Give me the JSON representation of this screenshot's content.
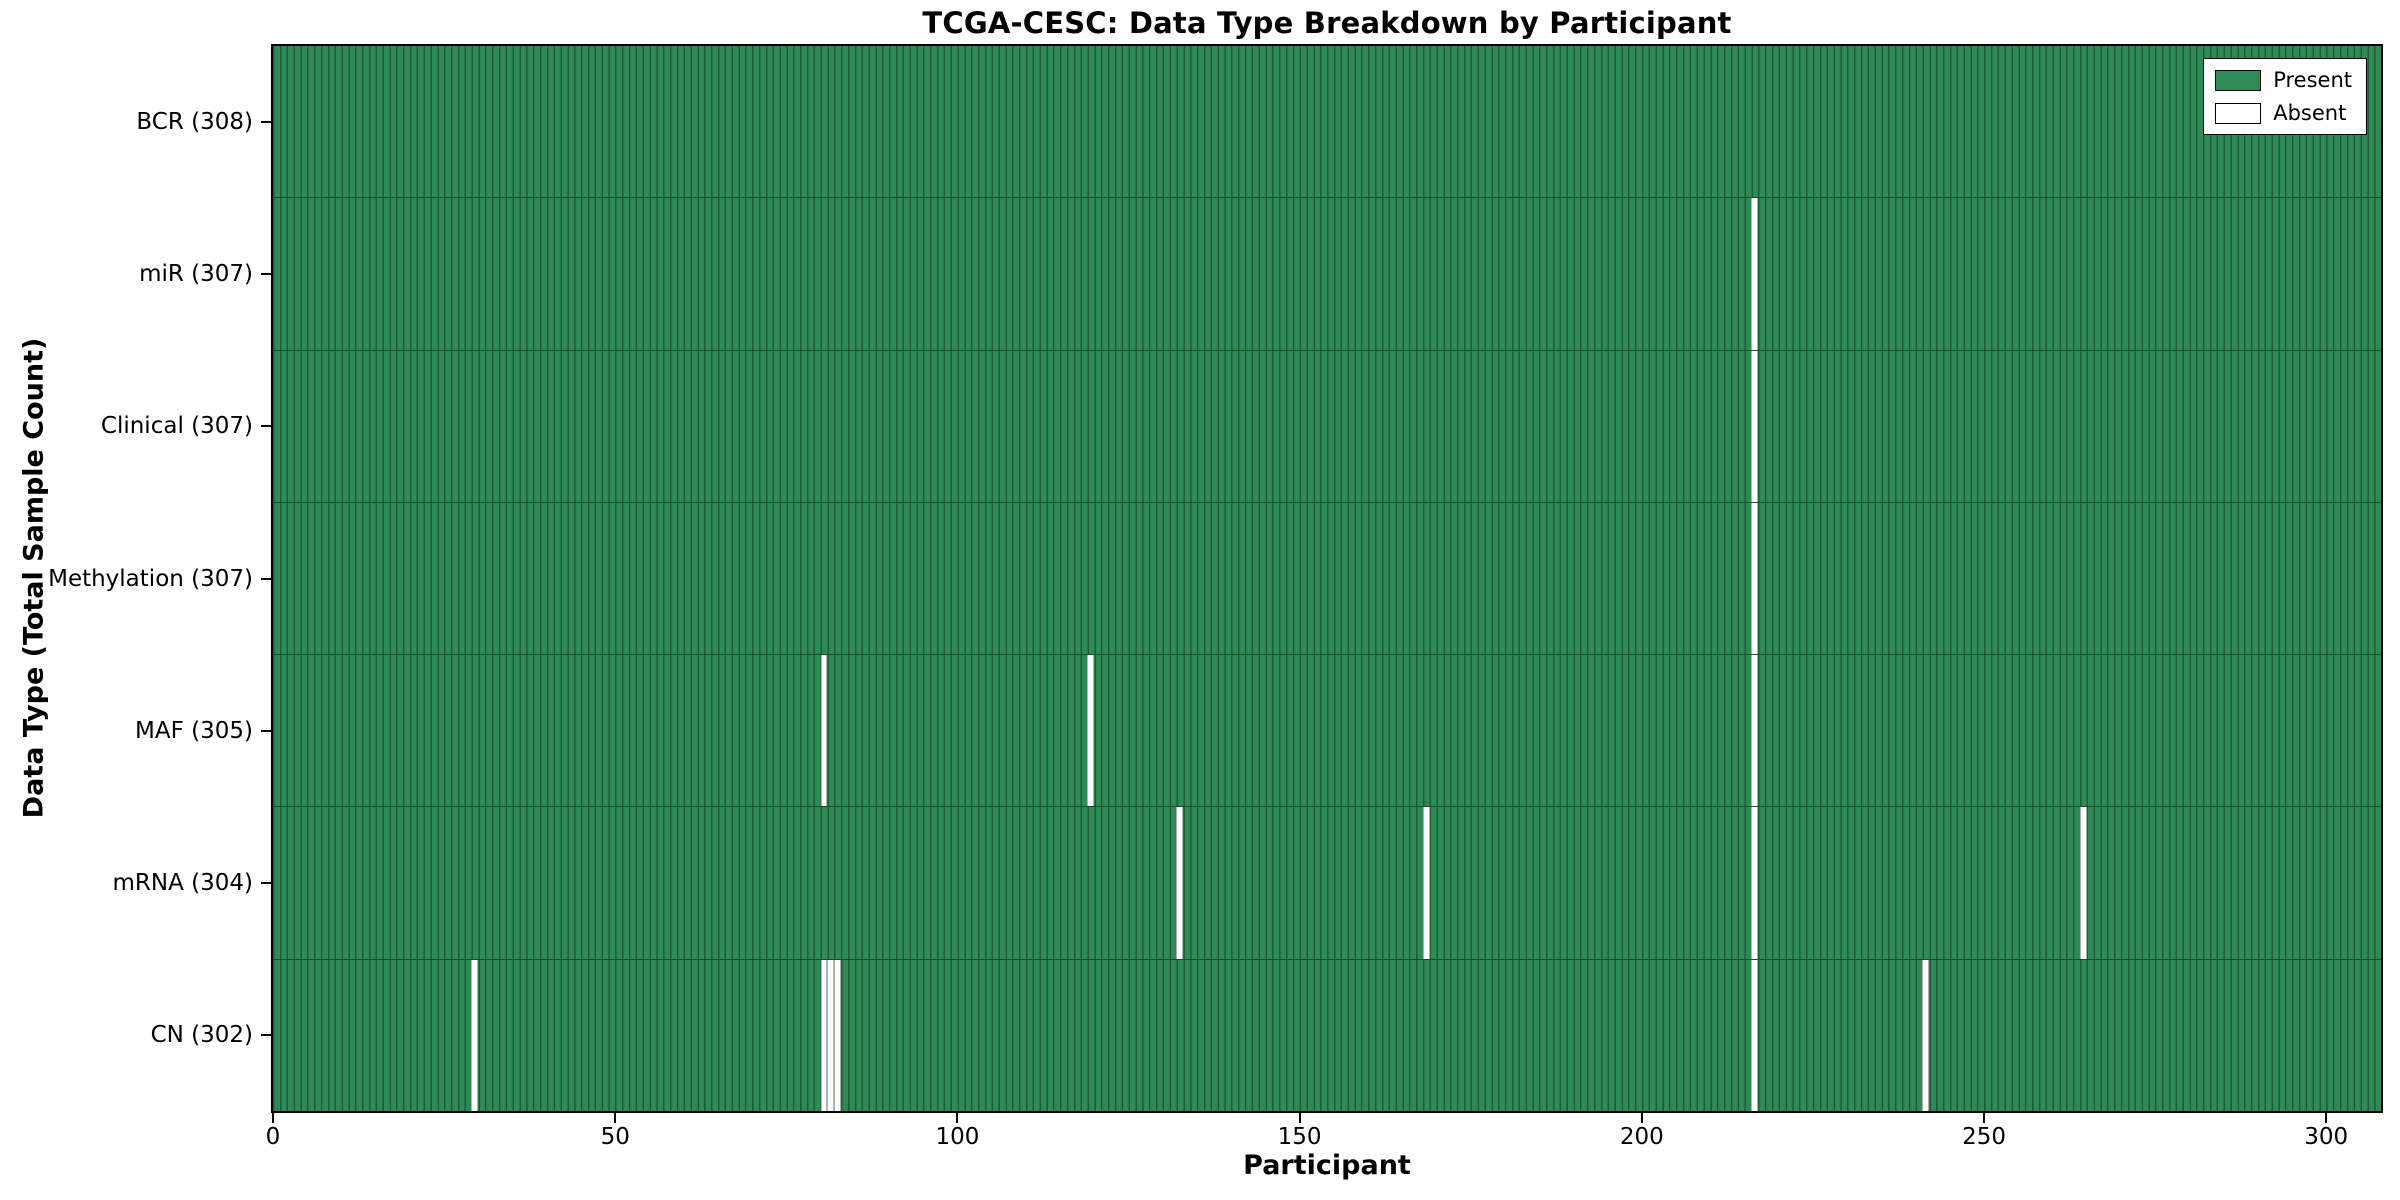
{
  "chart_data": {
    "type": "heatmap",
    "title": "TCGA-CESC: Data Type Breakdown by Participant",
    "xlabel": "Participant",
    "ylabel": "Data Type (Total Sample Count)",
    "n_participants": 308,
    "xlim": [
      0,
      308
    ],
    "x_ticks": [
      0,
      50,
      100,
      150,
      200,
      250,
      300
    ],
    "grid": false,
    "legend_position": "upper right",
    "colors": {
      "present_fill": "#2e8b57",
      "present_edge": "#1e5c38",
      "absent_fill": "#ffffff",
      "absent_edge": "#aeb6b0",
      "frame": "#000000"
    },
    "legend": [
      {
        "label": "Present",
        "color": "#2e8b57"
      },
      {
        "label": "Absent",
        "color": "#ffffff"
      }
    ],
    "rows": [
      {
        "label": "BCR (308)",
        "name": "bcr",
        "total": 308,
        "absent": []
      },
      {
        "label": "miR (307)",
        "name": "mir",
        "total": 307,
        "absent": [
          216
        ]
      },
      {
        "label": "Clinical (307)",
        "name": "clinical",
        "total": 307,
        "absent": [
          216
        ]
      },
      {
        "label": "Methylation (307)",
        "name": "methylation",
        "total": 307,
        "absent": [
          216
        ]
      },
      {
        "label": "MAF (305)",
        "name": "maf",
        "total": 305,
        "absent": [
          80,
          119,
          216
        ]
      },
      {
        "label": "mRNA (304)",
        "name": "mrna",
        "total": 304,
        "absent": [
          132,
          168,
          216,
          264
        ]
      },
      {
        "label": "CN (302)",
        "name": "cn",
        "total": 302,
        "absent": [
          29,
          80,
          81,
          82,
          216,
          241
        ]
      }
    ]
  }
}
